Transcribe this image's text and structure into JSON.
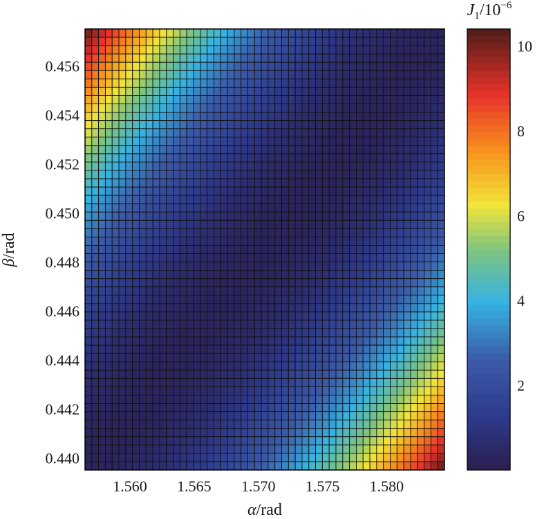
{
  "chart_data": {
    "type": "heatmap",
    "title": "",
    "xlabel": {
      "symbol": "α",
      "unit": "/rad"
    },
    "ylabel": {
      "symbol": "β",
      "unit": "/rad"
    },
    "xlim": [
      1.5565,
      1.5845
    ],
    "ylim": [
      0.4395,
      0.4575
    ],
    "x_ticks": [
      "1.560",
      "1.565",
      "1.570",
      "1.575",
      "1.580"
    ],
    "x_tick_values": [
      1.56,
      1.565,
      1.57,
      1.575,
      1.58
    ],
    "y_ticks": [
      "0.440",
      "0.442",
      "0.444",
      "0.446",
      "0.448",
      "0.450",
      "0.452",
      "0.454",
      "0.456"
    ],
    "y_tick_values": [
      0.44,
      0.442,
      0.444,
      0.446,
      0.448,
      0.45,
      0.452,
      0.454,
      0.456
    ],
    "grid_cells": {
      "nx": 53,
      "ny": 53
    },
    "value_model": {
      "description_of_values": "J1 minimum valley along diagonal (1.5565,0.4395)-(1.5845,0.4575); max ≈ 10.3 at top-left and bottom-right corners",
      "min": 0.3,
      "max": 10.3
    },
    "colorbar": {
      "label": {
        "symbol": "J",
        "subscript": "1",
        "unit": "/10",
        "exponent": "−6"
      },
      "min": 0,
      "max": 10.4,
      "ticks": [
        "2",
        "4",
        "6",
        "8",
        "10"
      ],
      "tick_values": [
        2,
        4,
        6,
        8,
        10
      ],
      "colors": [
        "#2a1e4e",
        "#2e3a8c",
        "#3b5ba8",
        "#36b2e2",
        "#7fc47f",
        "#f1e53a",
        "#f7941d",
        "#e8332a",
        "#4f1c18"
      ],
      "color_stops": [
        0,
        0.12,
        0.25,
        0.38,
        0.5,
        0.6,
        0.72,
        0.85,
        1
      ]
    }
  }
}
